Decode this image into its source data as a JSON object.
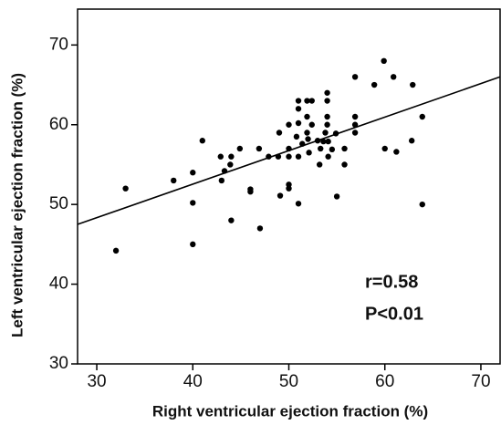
{
  "chart_data": {
    "type": "scatter",
    "x_label": "Right ventricular ejection fraction (%)",
    "y_label": "Left  ventricular ejection fraction (%)",
    "annotations": [
      "r=0.58",
      "P<0.01"
    ],
    "xlim": [
      28,
      72
    ],
    "ylim": [
      30,
      74.5
    ],
    "xticks": [
      30,
      40,
      50,
      60,
      70
    ],
    "yticks": [
      30,
      40,
      50,
      60,
      70
    ],
    "color": "#000000",
    "grid": false,
    "fit_line": {
      "x": [
        28,
        72
      ],
      "y": [
        47.5,
        66
      ]
    },
    "x": [
      32,
      33,
      38,
      40,
      40,
      40,
      41,
      42.9,
      43,
      43.3,
      43.9,
      44,
      44,
      44.9,
      46,
      46,
      46.9,
      47,
      47.9,
      48.9,
      49.1,
      49,
      50,
      50,
      50,
      50,
      50,
      50.8,
      51,
      51,
      51,
      51,
      51,
      51.4,
      51.9,
      51.9,
      51.9,
      52,
      52.1,
      52.4,
      52.4,
      53,
      53.2,
      53.3,
      53.6,
      53.8,
      54,
      54,
      54,
      54,
      54.1,
      54.1,
      54.5,
      54.9,
      55,
      55.8,
      55.8,
      56.9,
      56.9,
      56.9,
      56.9,
      58.9,
      59.9,
      60,
      60.9,
      61.2,
      62.9,
      62.8,
      63.9,
      63.9
    ],
    "y": [
      44.2,
      52,
      53,
      54,
      50.2,
      45,
      58,
      56,
      53,
      54.2,
      55,
      56,
      48,
      57,
      51.9,
      51.6,
      57,
      47,
      56,
      56,
      51.1,
      59,
      57,
      56,
      60,
      52.5,
      52,
      58.5,
      63,
      62,
      60.2,
      56,
      50.1,
      57.6,
      63,
      61,
      59,
      58.2,
      56.5,
      63,
      60,
      58,
      55,
      57,
      57.9,
      59,
      64,
      63,
      61,
      60,
      56,
      57.9,
      56.9,
      58.9,
      51,
      57,
      55,
      59,
      60,
      61,
      66,
      65,
      68,
      57,
      66,
      56.6,
      65,
      58,
      61,
      50
    ]
  }
}
